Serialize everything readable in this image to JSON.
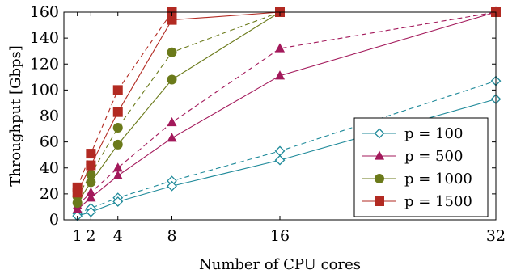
{
  "chart_data": {
    "type": "line",
    "xlabel": "Number of CPU cores",
    "ylabel": "Throughput [Gbps]",
    "x_ticks": [
      1,
      2,
      4,
      8,
      16,
      32
    ],
    "y_ticks": [
      0,
      20,
      40,
      60,
      80,
      100,
      120,
      140,
      160
    ],
    "xlim": [
      0,
      32
    ],
    "ylim": [
      0,
      160
    ],
    "grid": false,
    "legend_position": "bottom-right",
    "series": [
      {
        "name": "p = 100",
        "color": "#1f8a9a",
        "marker": "diamond",
        "solid": {
          "x": [
            1,
            2,
            4,
            8,
            16,
            32
          ],
          "y": [
            3,
            6,
            14,
            26,
            46,
            93
          ]
        },
        "dashed": {
          "x": [
            1,
            2,
            4,
            8,
            16,
            32
          ],
          "y": [
            5,
            9,
            17,
            30,
            53,
            107
          ]
        }
      },
      {
        "name": "p = 500",
        "color": "#a3195b",
        "marker": "triangle",
        "solid": {
          "x": [
            1,
            2,
            4,
            8,
            16,
            32
          ],
          "y": [
            8,
            17,
            34,
            63,
            111,
            160
          ]
        },
        "dashed": {
          "x": [
            1,
            2,
            4,
            8,
            16,
            32
          ],
          "y": [
            11,
            21,
            40,
            75,
            132,
            160
          ]
        }
      },
      {
        "name": "p = 1000",
        "color": "#6b7a1a",
        "marker": "circle",
        "solid": {
          "x": [
            1,
            2,
            4,
            8,
            16,
            32
          ],
          "y": [
            13,
            29,
            58,
            108,
            160,
            160
          ]
        },
        "dashed": {
          "x": [
            1,
            2,
            4,
            8,
            16,
            32
          ],
          "y": [
            18,
            35,
            71,
            129,
            160,
            160
          ]
        }
      },
      {
        "name": "p = 1500",
        "color": "#b22a22",
        "marker": "square",
        "solid": {
          "x": [
            1,
            2,
            4,
            8,
            16,
            32
          ],
          "y": [
            21,
            42,
            83,
            154,
            160,
            160
          ]
        },
        "dashed": {
          "x": [
            1,
            2,
            4,
            8,
            16,
            32
          ],
          "y": [
            25,
            51,
            100,
            160,
            160,
            160
          ]
        }
      }
    ]
  }
}
